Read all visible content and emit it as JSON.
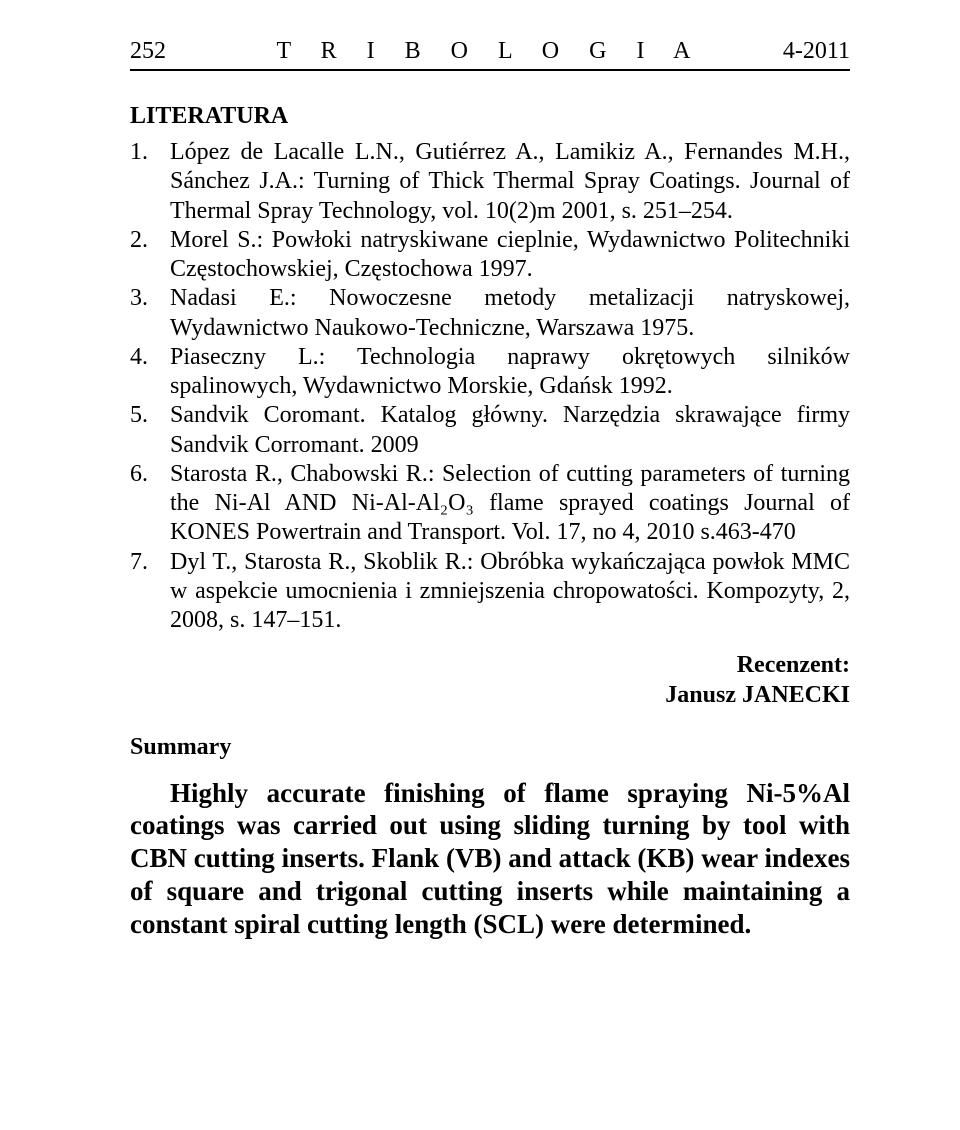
{
  "header": {
    "page_number": "252",
    "journal_title": "T R I B O L O G I A",
    "issue": "4-2011"
  },
  "sections": {
    "literature_title": "LITERATURA",
    "references": [
      {
        "num": "1.",
        "text": "López de Lacalle L.N., Gutiérrez A., Lamikiz A., Fernandes M.H., Sánchez J.A.: Turning of Thick Thermal Spray Coatings. Journal of Thermal Spray Technology, vol. 10(2)m 2001, s. 251–254."
      },
      {
        "num": "2.",
        "text": "Morel S.: Powłoki natryskiwane cieplnie, Wydawnictwo Politechniki Częstochowskiej, Częstochowa 1997."
      },
      {
        "num": "3.",
        "text": "Nadasi E.: Nowoczesne metody metalizacji natryskowej, Wydawnictwo Naukowo-Techniczne, Warszawa 1975."
      },
      {
        "num": "4.",
        "text": "Piaseczny L.: Technologia naprawy okrętowych silników spalinowych, Wydawnictwo Morskie, Gdańsk 1992."
      },
      {
        "num": "5.",
        "text": "Sandvik Coromant. Katalog główny. Narzędzia skrawające firmy Sandvik Corromant. 2009"
      },
      {
        "num": "6.",
        "text": "Starosta R., Chabowski R.: Selection of cutting parameters of turning the Ni-Al AND Ni-Al-Al₂O₃ flame sprayed coatings Journal of KONES Powertrain and Transport. Vol. 17, no 4, 2010 s.463-470"
      },
      {
        "num": "7.",
        "text": "Dyl T., Starosta R., Skoblik R.: Obróbka wykańczająca powłok MMC w aspekcie umocnienia i zmniejszenia chropowatości. Kompozyty, 2, 2008, s. 147–151."
      }
    ],
    "reviewer_label": "Recenzent:",
    "reviewer_name": "Janusz JANECKI",
    "summary_title": "Summary",
    "summary_body": "Highly accurate finishing of flame spraying Ni-5%Al coatings was carried out using sliding turning by tool with CBN cutting inserts. Flank (VB) and attack (KB) wear indexes of square and trigonal cutting inserts while maintaining a constant spiral cutting length (SCL) were determined."
  }
}
